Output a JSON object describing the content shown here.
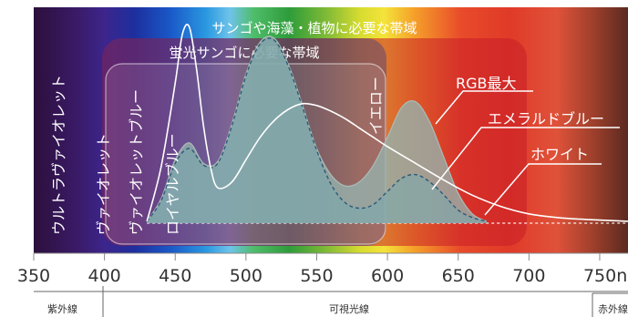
{
  "chart_data": {
    "type": "line",
    "title": "",
    "xlabel": "",
    "ylabel": "",
    "xlim": [
      350,
      770
    ],
    "ylim": [
      0,
      1
    ],
    "x_ticks": [
      "350",
      "400",
      "450",
      "500",
      "550",
      "600",
      "650",
      "700",
      "750nm"
    ],
    "bands": {
      "uv": "紫外線",
      "visible": "可視光線",
      "ir": "赤外線"
    },
    "regions": [
      {
        "id": "coral_seaweed_plants",
        "label": "サンゴや海藻・植物に必要な帯域"
      },
      {
        "id": "fluorescent_coral",
        "label": "蛍光サンゴに必要な帯域"
      }
    ],
    "region_labels": {
      "ultraviolet": "ウルトラヴァイオレット",
      "violet": "ヴァイオレット",
      "violet_blue": "ヴァイオレットブルー",
      "royal_blue": "ロイヤルブルー",
      "yellow": "イエロー"
    },
    "series": [
      {
        "name": "RGB最大",
        "color": "#8fa6a0",
        "x": [
          430,
          440,
          450,
          460,
          470,
          480,
          490,
          500,
          510,
          520,
          530,
          540,
          550,
          560,
          570,
          580,
          590,
          600,
          610,
          620,
          630,
          640,
          650,
          660,
          670
        ],
        "y": [
          0.01,
          0.13,
          0.34,
          0.43,
          0.32,
          0.33,
          0.53,
          0.8,
          0.97,
          0.99,
          0.85,
          0.63,
          0.4,
          0.26,
          0.2,
          0.22,
          0.31,
          0.46,
          0.62,
          0.65,
          0.54,
          0.35,
          0.16,
          0.05,
          0.01
        ]
      },
      {
        "name": "エメラルドブルー",
        "color": "#2f5a78",
        "x": [
          430,
          440,
          450,
          460,
          470,
          480,
          490,
          500,
          510,
          520,
          530,
          540,
          550,
          560,
          570,
          580,
          590,
          600,
          610,
          620,
          630,
          640,
          650,
          660,
          670
        ],
        "y": [
          0.01,
          0.12,
          0.32,
          0.4,
          0.31,
          0.32,
          0.52,
          0.79,
          0.96,
          0.98,
          0.84,
          0.62,
          0.39,
          0.21,
          0.11,
          0.08,
          0.1,
          0.17,
          0.24,
          0.26,
          0.22,
          0.15,
          0.07,
          0.03,
          0.01
        ]
      },
      {
        "name": "ホワイト",
        "color": "#ffffff",
        "x": [
          430,
          440,
          450,
          455,
          460,
          465,
          470,
          475,
          480,
          490,
          500,
          510,
          520,
          530,
          540,
          550,
          560,
          570,
          580,
          590,
          600,
          620,
          640,
          660,
          680,
          700,
          720,
          740,
          770
        ],
        "y": [
          0.01,
          0.3,
          0.75,
          1.01,
          1.05,
          0.83,
          0.52,
          0.3,
          0.19,
          0.22,
          0.34,
          0.46,
          0.55,
          0.61,
          0.64,
          0.63,
          0.6,
          0.56,
          0.51,
          0.46,
          0.41,
          0.32,
          0.23,
          0.15,
          0.09,
          0.05,
          0.03,
          0.02,
          0.01
        ]
      }
    ]
  },
  "colors": {
    "region_big": "#c81e28",
    "region_mid": "#222a9a",
    "region_small": "#ffffff"
  }
}
